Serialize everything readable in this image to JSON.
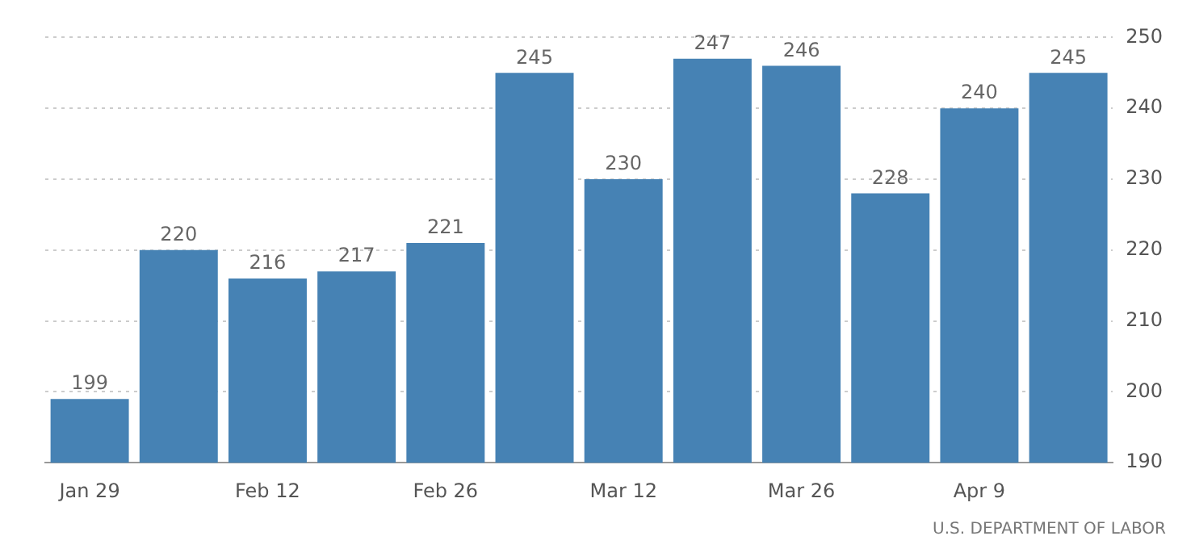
{
  "chart_data": {
    "type": "bar",
    "categories": [
      "Jan 29",
      null,
      "Feb 12",
      null,
      "Feb 26",
      null,
      "Mar 12",
      null,
      "Mar 26",
      null,
      "Apr 9",
      null
    ],
    "values": [
      199,
      220,
      216,
      217,
      221,
      245,
      230,
      247,
      246,
      228,
      240,
      245
    ],
    "color": "#4682b4",
    "ylim": [
      190,
      250
    ],
    "yticks": [
      190,
      200,
      210,
      220,
      230,
      240,
      250
    ],
    "grid": "y",
    "data_labels": true,
    "legend": false,
    "annotations": [
      "U.S. DEPARTMENT OF LABOR"
    ]
  }
}
